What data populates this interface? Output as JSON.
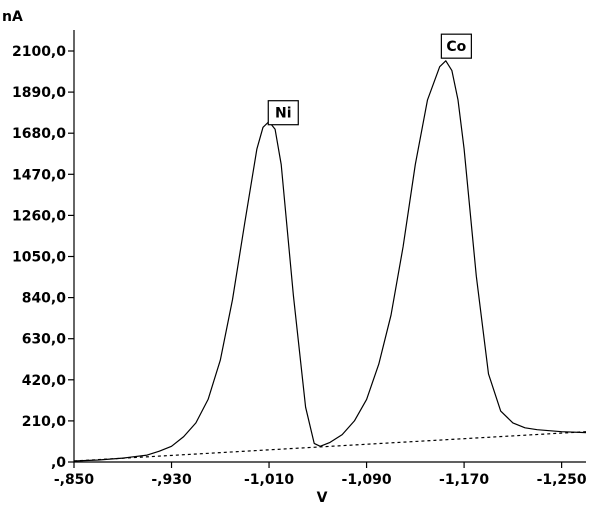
{
  "chart_data": {
    "type": "line",
    "title": "",
    "xlabel": "V",
    "ylabel": "nA",
    "xlim": [
      -0.85,
      -1.27
    ],
    "ylim": [
      0,
      2100
    ],
    "x_ticks": [
      {
        "value": -0.85,
        "label": "-,850"
      },
      {
        "value": -0.93,
        "label": "-,930"
      },
      {
        "value": -1.01,
        "label": "-1,010"
      },
      {
        "value": -1.09,
        "label": "-1,090"
      },
      {
        "value": -1.17,
        "label": "-1,170"
      },
      {
        "value": -1.25,
        "label": "-1,250"
      }
    ],
    "y_ticks": [
      {
        "value": 0,
        "label": ",0"
      },
      {
        "value": 210,
        "label": "210,0"
      },
      {
        "value": 420,
        "label": "420,0"
      },
      {
        "value": 630,
        "label": "630,0"
      },
      {
        "value": 840,
        "label": "840,0"
      },
      {
        "value": 1050,
        "label": "1050,0"
      },
      {
        "value": 1260,
        "label": "1260,0"
      },
      {
        "value": 1470,
        "label": "1470,0"
      },
      {
        "value": 1680,
        "label": "1680,0"
      },
      {
        "value": 1890,
        "label": "1890,0"
      },
      {
        "value": 2100,
        "label": "2100,0"
      }
    ],
    "grid": false,
    "series": [
      {
        "style": "solid",
        "x": [
          -0.85,
          -0.87,
          -0.89,
          -0.91,
          -0.92,
          -0.93,
          -0.94,
          -0.95,
          -0.96,
          -0.97,
          -0.98,
          -0.99,
          -1.0,
          -1.005,
          -1.01,
          -1.015,
          -1.02,
          -1.03,
          -1.04,
          -1.047,
          -1.052,
          -1.06,
          -1.07,
          -1.08,
          -1.09,
          -1.1,
          -1.11,
          -1.12,
          -1.13,
          -1.14,
          -1.15,
          -1.155,
          -1.16,
          -1.165,
          -1.17,
          -1.18,
          -1.19,
          -1.2,
          -1.21,
          -1.22,
          -1.23,
          -1.24,
          -1.25,
          -1.27
        ],
        "y": [
          5,
          10,
          20,
          35,
          55,
          80,
          130,
          200,
          320,
          520,
          830,
          1220,
          1600,
          1710,
          1740,
          1700,
          1520,
          850,
          280,
          95,
          80,
          100,
          140,
          210,
          320,
          500,
          750,
          1100,
          1520,
          1850,
          2020,
          2050,
          2000,
          1850,
          1600,
          950,
          450,
          260,
          200,
          175,
          165,
          160,
          155,
          150
        ]
      },
      {
        "style": "dashed",
        "x": [
          -0.85,
          -1.27
        ],
        "y": [
          5,
          155
        ]
      }
    ],
    "annotations": [
      {
        "text": "Ni",
        "x": -1.011,
        "y": 1740,
        "label_y": 1800
      },
      {
        "text": "Co",
        "x": -1.153,
        "y": 2050,
        "label_y": 2140
      }
    ]
  }
}
